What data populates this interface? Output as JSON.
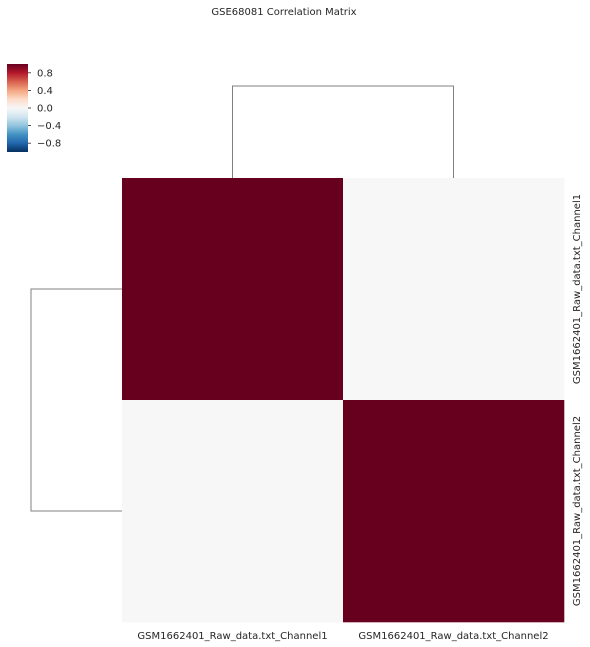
{
  "chart_data": {
    "type": "heatmap",
    "title": "GSE68081 Correlation Matrix",
    "rows": [
      "GSM1662401_Raw_data.txt_Channel1",
      "GSM1662401_Raw_data.txt_Channel2"
    ],
    "columns": [
      "GSM1662401_Raw_data.txt_Channel1",
      "GSM1662401_Raw_data.txt_Channel2"
    ],
    "values": [
      [
        1.0,
        0.0
      ],
      [
        0.0,
        1.0
      ]
    ],
    "colorbar": {
      "colormap": "RdBu_r",
      "vmin": -1.0,
      "vmax": 1.0,
      "ticks": [
        {
          "value": 0.8,
          "label": "0.8"
        },
        {
          "value": 0.4,
          "label": "0.4"
        },
        {
          "value": 0.0,
          "label": "0.0"
        },
        {
          "value": -0.4,
          "label": "−0.4"
        },
        {
          "value": -0.8,
          "label": "−0.8"
        }
      ]
    },
    "dendrogram": {
      "row": true,
      "column": true,
      "color": "#808080"
    }
  }
}
